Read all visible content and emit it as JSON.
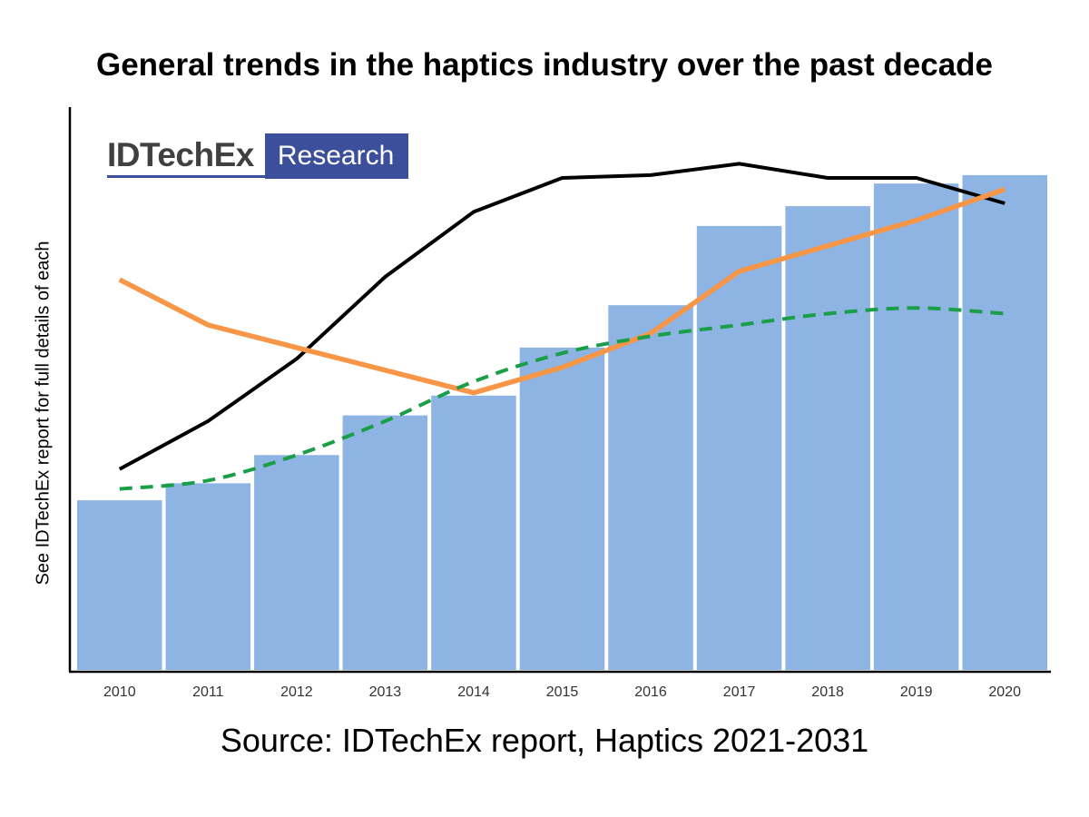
{
  "title": "General trends in the haptics industry over the past decade",
  "source": "Source: IDTechEx report, Haptics 2021-2031",
  "ylabel": "See IDTechEx report for full details of each",
  "logo": {
    "main": "IDTechEx",
    "sub": "Research"
  },
  "colors": {
    "bars": "#8eb4e3",
    "black_line": "#000000",
    "orange_line": "#f79646",
    "green_dashed": "#1a9e48",
    "logo_blue": "#3b4f9b"
  },
  "chart_data": {
    "type": "bar",
    "title": "General trends in the haptics industry over the past decade",
    "xlabel": "",
    "ylabel": "See IDTechEx report for full details of each",
    "categories": [
      "2010",
      "2011",
      "2012",
      "2013",
      "2014",
      "2015",
      "2016",
      "2017",
      "2018",
      "2019",
      "2020"
    ],
    "ylim": [
      0,
      100
    ],
    "y_ticks_shown": false,
    "grid": false,
    "bars": {
      "values": [
        30,
        33,
        38,
        45,
        48.5,
        57,
        64.5,
        78.5,
        82,
        86,
        87.5
      ]
    },
    "lines": [
      {
        "style": "solid",
        "color": "#000000",
        "values": [
          35.5,
          44,
          55,
          69.5,
          81,
          87,
          87.5,
          89.5,
          87,
          87,
          82.5
        ]
      },
      {
        "style": "solid",
        "color": "#f79646",
        "values": [
          69,
          61,
          57,
          53,
          49,
          53.5,
          59.5,
          70.5,
          75,
          79.5,
          85
        ]
      },
      {
        "style": "dashed",
        "color": "#1a9e48",
        "values": [
          32,
          33.5,
          38,
          44,
          51,
          56,
          59,
          61,
          63,
          64,
          63
        ]
      }
    ]
  }
}
